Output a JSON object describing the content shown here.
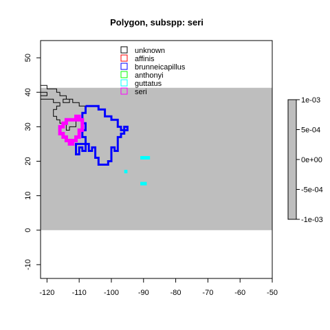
{
  "chart_data": {
    "type": "map",
    "title": "Polygon, subspp: seri",
    "xlabel": "",
    "ylabel": "",
    "xlim": [
      -122,
      -50
    ],
    "ylim": [
      -14,
      55
    ],
    "x_ticks": [
      -120,
      -110,
      -100,
      -90,
      -80,
      -70,
      -60,
      -50
    ],
    "y_ticks": [
      -10,
      0,
      10,
      20,
      30,
      40,
      50
    ],
    "x_tick_labels": [
      "-120",
      "-110",
      "-100",
      "-90",
      "-80",
      "-70",
      "-60",
      "-50"
    ],
    "y_tick_labels": [
      "-10",
      "0",
      "10",
      "20",
      "30",
      "40",
      "50"
    ],
    "raster": {
      "xmin": -122,
      "xmax": -50,
      "ymin": 0,
      "ymax": 41.3,
      "color": "#bebebe"
    },
    "legend_position": "top-center",
    "series": [
      {
        "name": "unknown",
        "color": "#000000",
        "width": 1,
        "points": [
          [
            -122,
            40
          ],
          [
            -120,
            40
          ],
          [
            -120,
            39
          ],
          [
            -122,
            39
          ],
          [
            -122,
            38
          ],
          [
            -118,
            38
          ],
          [
            -118,
            37
          ],
          [
            -116,
            37
          ],
          [
            -116,
            36
          ],
          [
            -117,
            36
          ],
          [
            -117,
            35
          ],
          [
            -118,
            35
          ],
          [
            -118,
            33
          ],
          [
            -117,
            33
          ],
          [
            -117,
            32
          ],
          [
            -116,
            32
          ],
          [
            -116,
            31
          ],
          [
            -114,
            31
          ],
          [
            -114,
            29
          ],
          [
            -113,
            29
          ],
          [
            -113,
            30
          ],
          [
            -111,
            30
          ],
          [
            -111,
            32
          ],
          [
            -109,
            32
          ],
          [
            -109,
            34
          ],
          [
            -108,
            34
          ],
          [
            -108,
            36
          ],
          [
            -110,
            36
          ],
          [
            -110,
            37
          ],
          [
            -112,
            37
          ],
          [
            -112,
            38
          ],
          [
            -115,
            38
          ],
          [
            -115,
            37
          ],
          [
            -113,
            37
          ],
          [
            -113,
            38
          ],
          [
            -114,
            38
          ],
          [
            -114,
            39
          ],
          [
            -116,
            39
          ],
          [
            -116,
            40
          ],
          [
            -117,
            40
          ],
          [
            -117,
            41
          ],
          [
            -120,
            41
          ],
          [
            -120,
            42
          ],
          [
            -122,
            42
          ]
        ]
      },
      {
        "name": "affinis",
        "color": "#ff0000",
        "width": 3,
        "points": []
      },
      {
        "name": "brunneicapillus",
        "color": "#0000ff",
        "width": 3,
        "points": [
          [
            -108,
            36
          ],
          [
            -104,
            36
          ],
          [
            -104,
            35
          ],
          [
            -102,
            35
          ],
          [
            -102,
            33
          ],
          [
            -100,
            33
          ],
          [
            -100,
            32
          ],
          [
            -98,
            32
          ],
          [
            -98,
            30
          ],
          [
            -97,
            30
          ],
          [
            -97,
            29
          ],
          [
            -96,
            29
          ],
          [
            -96,
            30
          ],
          [
            -95,
            30
          ],
          [
            -95,
            29
          ],
          [
            -96,
            29
          ],
          [
            -96,
            28
          ],
          [
            -97,
            28
          ],
          [
            -97,
            27
          ],
          [
            -98,
            27
          ],
          [
            -98,
            23
          ],
          [
            -99,
            23
          ],
          [
            -99,
            24
          ],
          [
            -100,
            24
          ],
          [
            -100,
            20
          ],
          [
            -101,
            20
          ],
          [
            -101,
            19
          ],
          [
            -104,
            19
          ],
          [
            -104,
            21
          ],
          [
            -105,
            21
          ],
          [
            -105,
            24
          ],
          [
            -106,
            24
          ],
          [
            -106,
            23
          ],
          [
            -107,
            23
          ],
          [
            -107,
            25
          ],
          [
            -108,
            25
          ],
          [
            -108,
            23
          ],
          [
            -109,
            23
          ],
          [
            -109,
            24
          ],
          [
            -110,
            24
          ],
          [
            -110,
            22
          ],
          [
            -111,
            22
          ],
          [
            -111,
            25
          ],
          [
            -108,
            25
          ],
          [
            -108,
            27
          ],
          [
            -109,
            27
          ],
          [
            -109,
            29
          ],
          [
            -108,
            29
          ],
          [
            -108,
            31
          ],
          [
            -109,
            31
          ],
          [
            -109,
            34
          ],
          [
            -108,
            34
          ],
          [
            -108,
            36
          ]
        ]
      },
      {
        "name": "anthonyi",
        "color": "#00ff00",
        "width": 3,
        "points": []
      },
      {
        "name": "guttatus",
        "color": "#00ffff",
        "width": 3,
        "points": []
      },
      {
        "name": "seri",
        "color": "#ff00ff",
        "width": 5,
        "points": [
          [
            -113,
            32
          ],
          [
            -111,
            32
          ],
          [
            -111,
            33
          ],
          [
            -110,
            33
          ],
          [
            -110,
            32
          ],
          [
            -109,
            32
          ],
          [
            -109,
            29
          ],
          [
            -110,
            29
          ],
          [
            -110,
            27
          ],
          [
            -111,
            27
          ],
          [
            -111,
            26
          ],
          [
            -112,
            26
          ],
          [
            -112,
            25
          ],
          [
            -113,
            25
          ],
          [
            -113,
            26
          ],
          [
            -114,
            26
          ],
          [
            -114,
            27
          ],
          [
            -115,
            27
          ],
          [
            -115,
            28
          ],
          [
            -116,
            28
          ],
          [
            -116,
            30
          ],
          [
            -115,
            30
          ],
          [
            -115,
            31
          ],
          [
            -114,
            31
          ],
          [
            -114,
            32
          ],
          [
            -113,
            32
          ]
        ]
      }
    ],
    "filled_cells": [
      {
        "series": "guttatus",
        "color": "#00ffff",
        "x": [
          -96,
          -95
        ],
        "y": [
          16.5,
          17.5
        ]
      },
      {
        "series": "guttatus",
        "color": "#00ffff",
        "x": [
          -91,
          -88
        ],
        "y": [
          20.5,
          21.5
        ]
      },
      {
        "series": "guttatus",
        "color": "#00ffff",
        "x": [
          -91,
          -89
        ],
        "y": [
          13,
          14
        ]
      }
    ],
    "colorbar": {
      "tick_labels": [
        "1e-03",
        "5e-04",
        "0e+00",
        "-5e-04",
        "-1e-03"
      ],
      "color": "#bebebe"
    }
  }
}
